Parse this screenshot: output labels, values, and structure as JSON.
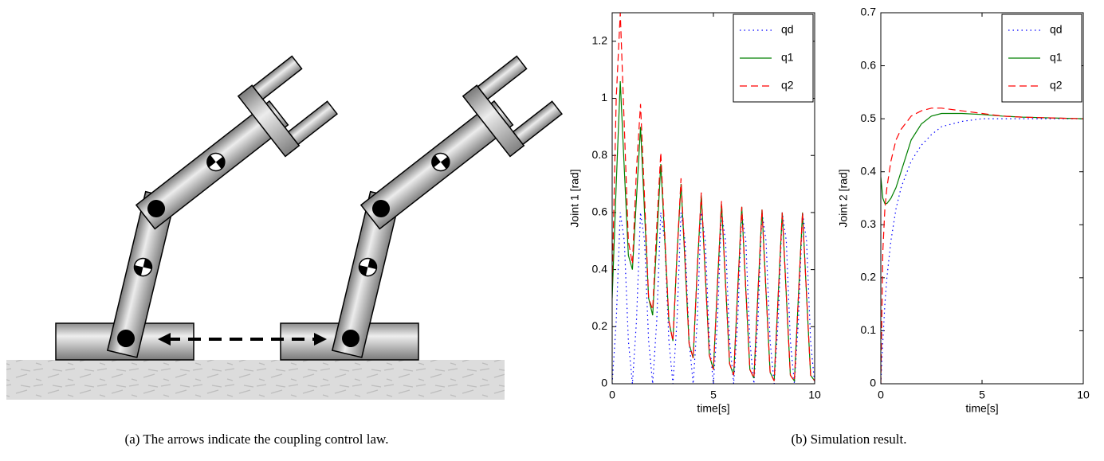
{
  "captions": [
    "(a) The arrows indicate the coupling control law.",
    "(b) Simulation result."
  ],
  "chart_data": [
    {
      "type": "line",
      "xlabel": "time[s]",
      "ylabel": "Joint 1 [rad]",
      "xlim": [
        0,
        10
      ],
      "ylim": [
        0,
        1.3
      ],
      "xticks": [
        0,
        5,
        10
      ],
      "yticks": [
        0,
        0.2,
        0.4,
        0.6,
        0.8,
        1,
        1.2
      ],
      "legend": "upper-right",
      "x": [
        0,
        0.2,
        0.4,
        0.6,
        0.8,
        1,
        1.2,
        1.4,
        1.6,
        1.8,
        2,
        2.2,
        2.4,
        2.6,
        2.8,
        3,
        3.2,
        3.4,
        3.6,
        3.8,
        4,
        4.2,
        4.4,
        4.6,
        4.8,
        5,
        5.2,
        5.4,
        5.6,
        5.8,
        6,
        6.2,
        6.4,
        6.6,
        6.8,
        7,
        7.2,
        7.4,
        7.6,
        7.8,
        8,
        8.2,
        8.4,
        8.6,
        8.8,
        9,
        9.2,
        9.4,
        9.6,
        9.8,
        10
      ],
      "series": [
        {
          "name": "qd",
          "color": "#0000ff",
          "dash": "dotted",
          "values": [
            0,
            0.22,
            0.6,
            0.5,
            0.15,
            0,
            0.22,
            0.6,
            0.5,
            0.15,
            0,
            0.22,
            0.6,
            0.5,
            0.15,
            0,
            0.22,
            0.6,
            0.5,
            0.15,
            0,
            0.22,
            0.6,
            0.5,
            0.15,
            0,
            0.22,
            0.6,
            0.5,
            0.15,
            0,
            0.22,
            0.6,
            0.5,
            0.15,
            0,
            0.22,
            0.6,
            0.5,
            0.15,
            0,
            0.22,
            0.6,
            0.5,
            0.15,
            0,
            0.22,
            0.6,
            0.5,
            0.15,
            0
          ]
        },
        {
          "name": "q1",
          "color": "#008000",
          "dash": "solid",
          "values": [
            0.3,
            0.7,
            1.06,
            0.75,
            0.45,
            0.4,
            0.65,
            0.9,
            0.6,
            0.3,
            0.24,
            0.5,
            0.77,
            0.5,
            0.22,
            0.15,
            0.45,
            0.7,
            0.42,
            0.14,
            0.09,
            0.4,
            0.66,
            0.38,
            0.1,
            0.05,
            0.35,
            0.63,
            0.35,
            0.07,
            0.03,
            0.33,
            0.62,
            0.33,
            0.05,
            0.02,
            0.32,
            0.61,
            0.32,
            0.04,
            0.01,
            0.31,
            0.6,
            0.31,
            0.03,
            0.01,
            0.31,
            0.6,
            0.31,
            0.03,
            0.01
          ]
        },
        {
          "name": "q2",
          "color": "#ff0000",
          "dash": "dashed",
          "values": [
            0.35,
            1.0,
            1.3,
            0.9,
            0.5,
            0.42,
            0.75,
            0.98,
            0.65,
            0.3,
            0.26,
            0.55,
            0.81,
            0.52,
            0.22,
            0.15,
            0.45,
            0.72,
            0.43,
            0.14,
            0.09,
            0.4,
            0.67,
            0.38,
            0.1,
            0.05,
            0.35,
            0.64,
            0.35,
            0.07,
            0.03,
            0.33,
            0.62,
            0.33,
            0.05,
            0.02,
            0.32,
            0.61,
            0.32,
            0.04,
            0.01,
            0.31,
            0.6,
            0.31,
            0.03,
            0.01,
            0.31,
            0.6,
            0.31,
            0.03,
            0.01
          ]
        }
      ]
    },
    {
      "type": "line",
      "xlabel": "time[s]",
      "ylabel": "Joint 2 [rad]",
      "xlim": [
        0,
        10
      ],
      "ylim": [
        0,
        0.7
      ],
      "xticks": [
        0,
        5,
        10
      ],
      "yticks": [
        0,
        0.1,
        0.2,
        0.3,
        0.4,
        0.5,
        0.6,
        0.7
      ],
      "legend": "upper-right",
      "x": [
        0,
        0.1,
        0.2,
        0.3,
        0.5,
        0.75,
        1,
        1.5,
        2,
        2.5,
        3,
        4,
        5,
        6,
        7,
        8,
        9,
        10
      ],
      "series": [
        {
          "name": "qd",
          "color": "#0000ff",
          "dash": "dotted",
          "values": [
            0,
            0.08,
            0.15,
            0.2,
            0.27,
            0.33,
            0.37,
            0.42,
            0.45,
            0.47,
            0.485,
            0.495,
            0.5,
            0.5,
            0.5,
            0.5,
            0.5,
            0.5
          ]
        },
        {
          "name": "q1",
          "color": "#008000",
          "dash": "solid",
          "values": [
            0.39,
            0.35,
            0.34,
            0.34,
            0.35,
            0.37,
            0.4,
            0.46,
            0.49,
            0.505,
            0.51,
            0.51,
            0.508,
            0.505,
            0.503,
            0.502,
            0.501,
            0.5
          ]
        },
        {
          "name": "q2",
          "color": "#ff0000",
          "dash": "dashed",
          "values": [
            0,
            0.25,
            0.33,
            0.37,
            0.42,
            0.46,
            0.48,
            0.505,
            0.515,
            0.52,
            0.52,
            0.515,
            0.51,
            0.505,
            0.503,
            0.502,
            0.501,
            0.5
          ]
        }
      ]
    }
  ]
}
